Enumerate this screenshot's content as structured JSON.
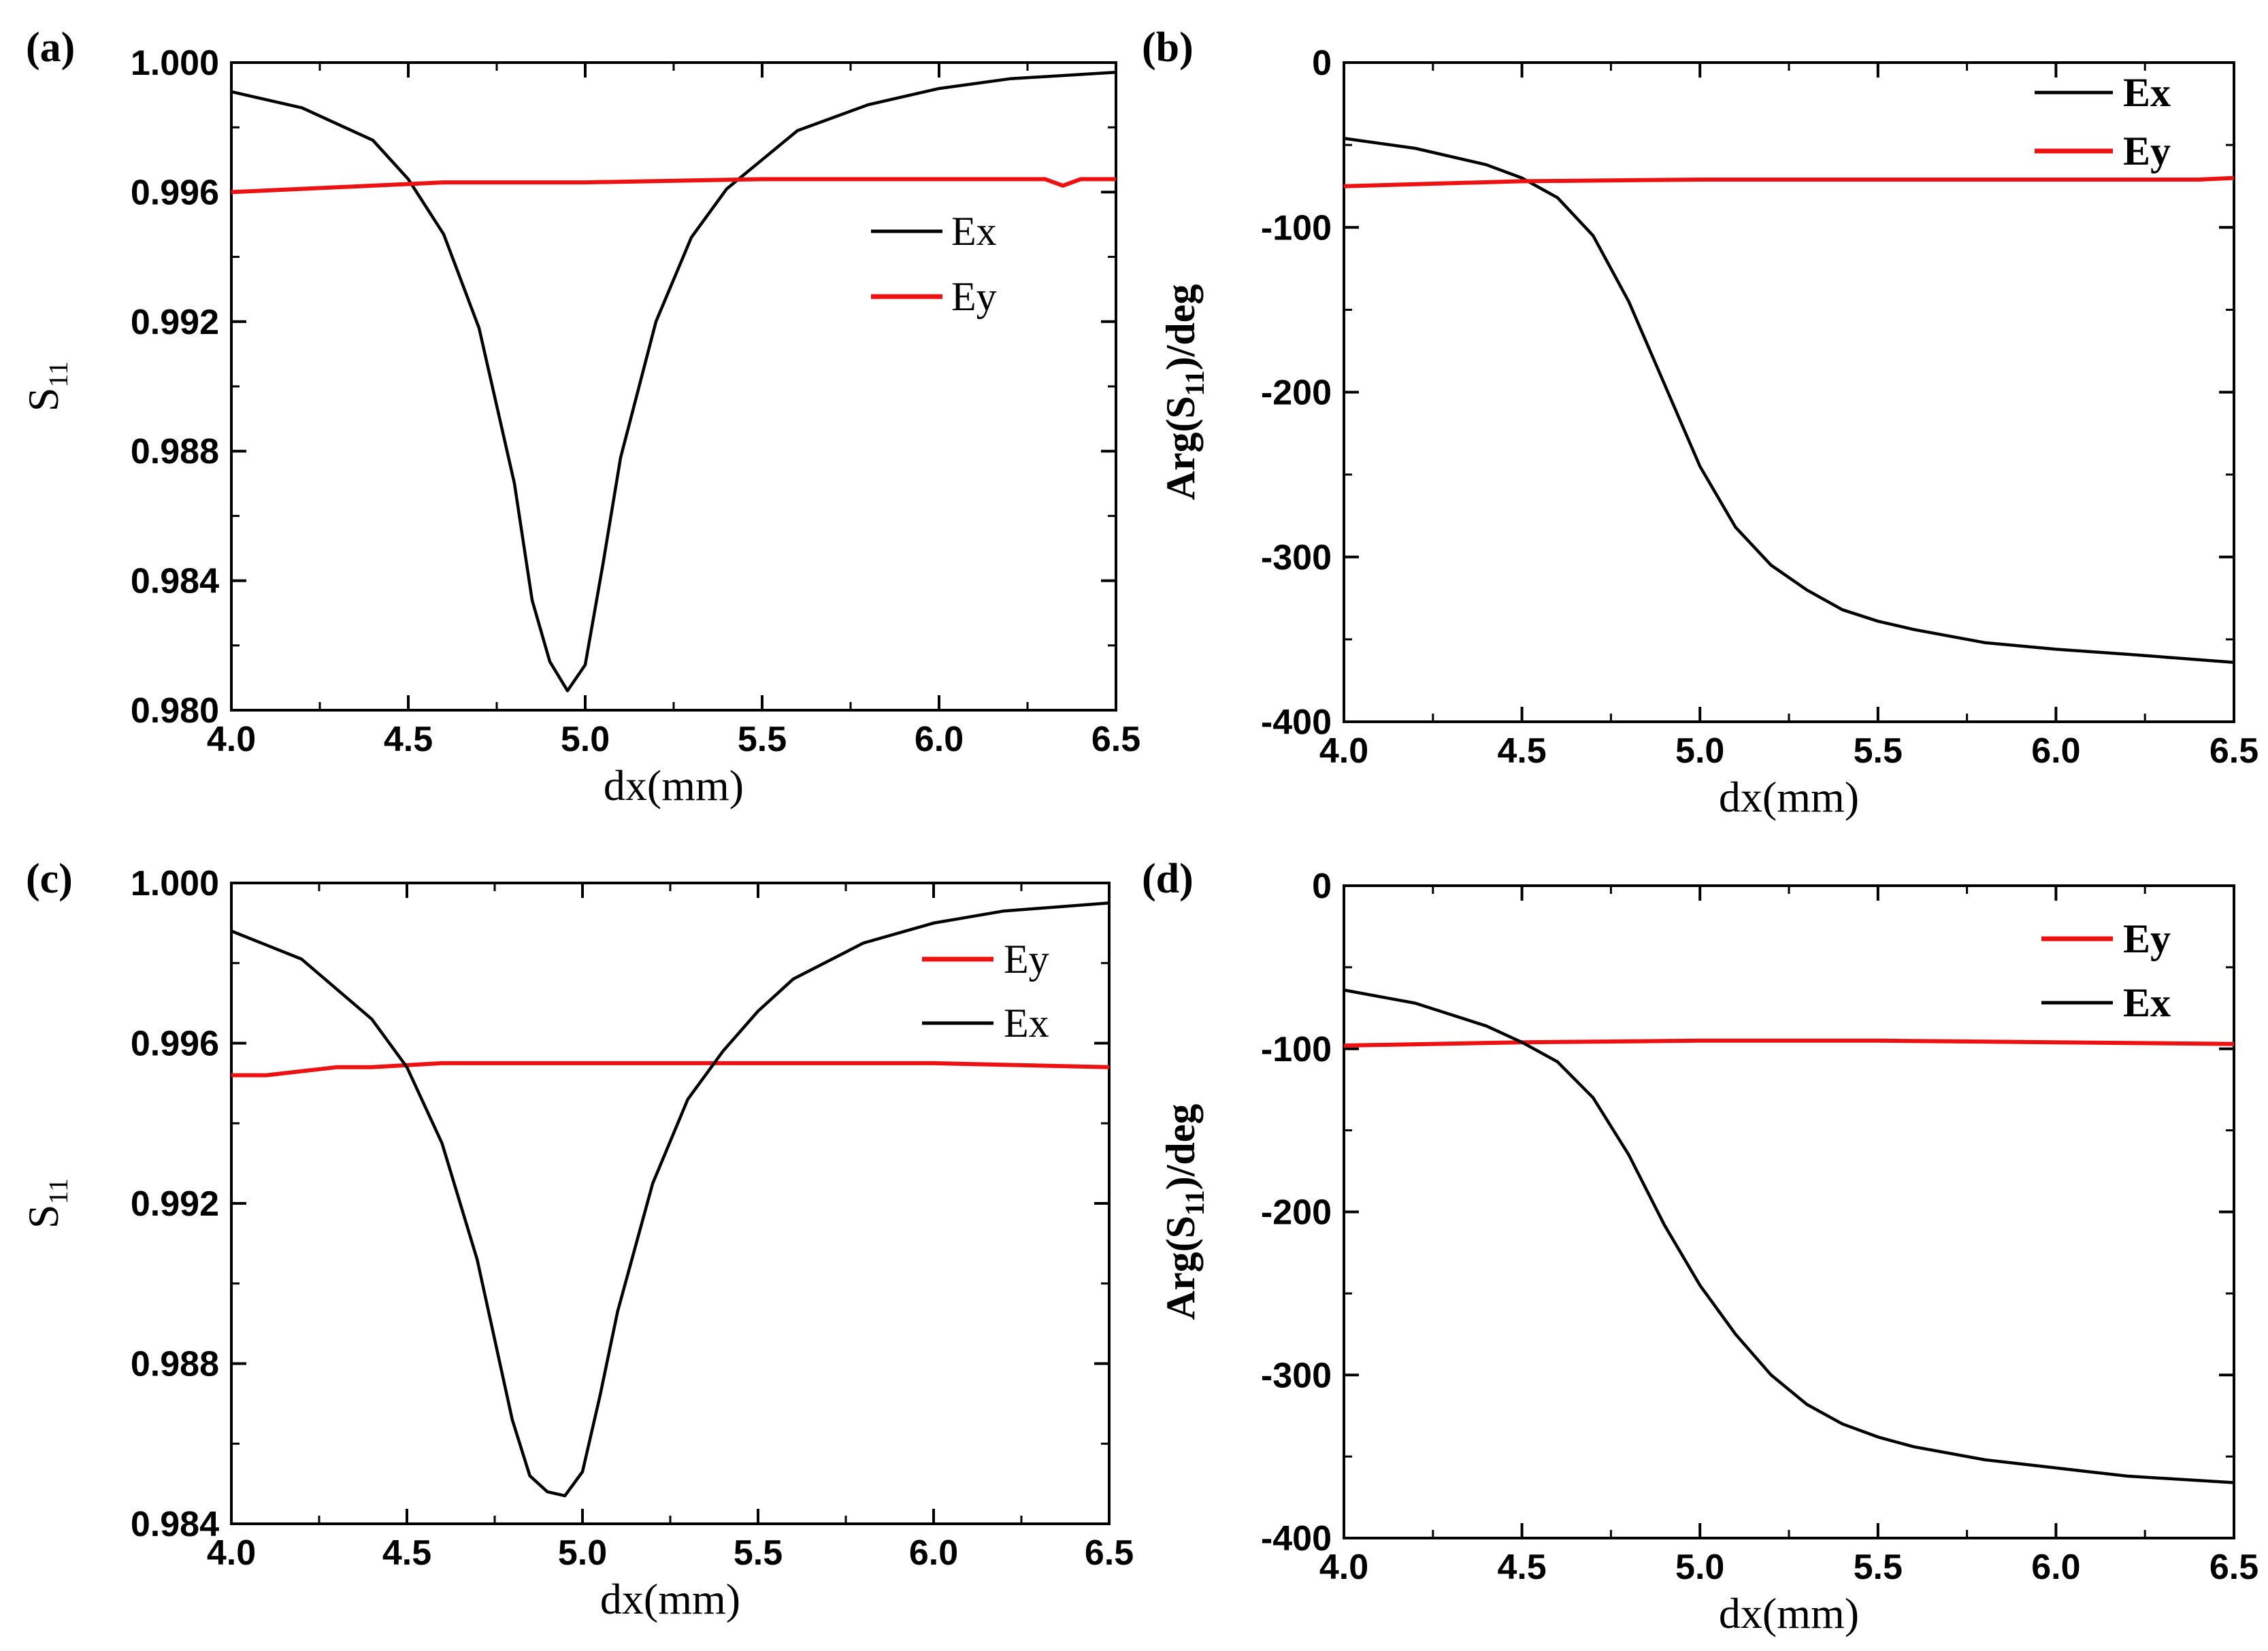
{
  "colors": {
    "ex": "#000000",
    "ey": "#ee1111",
    "axis": "#000000"
  },
  "chart_data": [
    {
      "panel": "(a)",
      "type": "line",
      "xlabel": "dx(mm)",
      "ylabel": "S",
      "ylabel_sub": "11",
      "xlim": [
        4.0,
        6.5
      ],
      "ylim": [
        0.98,
        1.0
      ],
      "xticks": [
        "4.0",
        "4.5",
        "5.0",
        "5.5",
        "6.0",
        "6.5"
      ],
      "yticks": [
        "0.980",
        "0.984",
        "0.988",
        "0.992",
        "0.996",
        "1.000"
      ],
      "legend": [
        "Ex",
        "Ey"
      ],
      "legend_position": "right, below top",
      "series": [
        {
          "name": "Ex",
          "color": "#000000",
          "x": [
            4.0,
            4.2,
            4.4,
            4.5,
            4.6,
            4.7,
            4.8,
            4.85,
            4.9,
            4.95,
            5.0,
            5.05,
            5.1,
            5.2,
            5.3,
            5.4,
            5.5,
            5.6,
            5.8,
            6.0,
            6.2,
            6.5
          ],
          "y": [
            0.9991,
            0.9986,
            0.9976,
            0.9964,
            0.9947,
            0.9918,
            0.987,
            0.9834,
            0.9815,
            0.9806,
            0.9814,
            0.9845,
            0.9878,
            0.992,
            0.9946,
            0.9961,
            0.997,
            0.9979,
            0.9987,
            0.9992,
            0.9995,
            0.9997
          ]
        },
        {
          "name": "Ey",
          "color": "#ee1111",
          "x": [
            4.0,
            4.2,
            4.4,
            4.6,
            4.8,
            5.0,
            5.5,
            6.0,
            6.3,
            6.35,
            6.4,
            6.5
          ],
          "y": [
            0.996,
            0.9961,
            0.9962,
            0.9963,
            0.9963,
            0.9963,
            0.9964,
            0.9964,
            0.9964,
            0.9962,
            0.9964,
            0.9964
          ]
        }
      ]
    },
    {
      "panel": "(b)",
      "type": "line",
      "xlabel": "dx(mm)",
      "ylabel": "Arg(S",
      "ylabel_sub": "11",
      "ylabel_end": ")/deg",
      "xlim": [
        4.0,
        6.5
      ],
      "ylim": [
        -400,
        0
      ],
      "xticks": [
        "4.0",
        "4.5",
        "5.0",
        "5.5",
        "6.0",
        "6.5"
      ],
      "yticks": [
        "-400",
        "-300",
        "-200",
        "-100",
        "0"
      ],
      "legend": [
        "Ex",
        "Ey"
      ],
      "legend_position": "top-right",
      "series": [
        {
          "name": "Ex",
          "color": "#000000",
          "x": [
            4.0,
            4.2,
            4.4,
            4.5,
            4.6,
            4.7,
            4.8,
            4.9,
            5.0,
            5.1,
            5.2,
            5.3,
            5.4,
            5.5,
            5.6,
            5.8,
            6.0,
            6.2,
            6.5
          ],
          "y": [
            -46,
            -52,
            -62,
            -70,
            -82,
            -105,
            -145,
            -195,
            -245,
            -282,
            -305,
            -320,
            -332,
            -339,
            -344,
            -352,
            -356,
            -359,
            -364
          ]
        },
        {
          "name": "Ey",
          "color": "#ee1111",
          "x": [
            4.0,
            4.5,
            5.0,
            5.5,
            6.0,
            6.4,
            6.5
          ],
          "y": [
            -75,
            -72,
            -71,
            -71,
            -71,
            -71,
            -70
          ]
        }
      ]
    },
    {
      "panel": "(c)",
      "type": "line",
      "xlabel": "dx(mm)",
      "ylabel": "S",
      "ylabel_sub": "11",
      "xlim": [
        4.0,
        6.5
      ],
      "ylim": [
        0.984,
        1.0
      ],
      "xticks": [
        "4.0",
        "4.5",
        "5.0",
        "5.5",
        "6.0",
        "6.5"
      ],
      "yticks": [
        "0.984",
        "0.988",
        "0.992",
        "0.996",
        "1.000"
      ],
      "legend": [
        "Ey",
        "Ex"
      ],
      "legend_position": "top-right",
      "series": [
        {
          "name": "Ey",
          "color": "#ee1111",
          "x": [
            4.0,
            4.1,
            4.2,
            4.3,
            4.4,
            4.6,
            5.0,
            5.5,
            6.0,
            6.5
          ],
          "y": [
            0.9952,
            0.9952,
            0.9953,
            0.9954,
            0.9954,
            0.9955,
            0.9955,
            0.9955,
            0.9955,
            0.9954
          ]
        },
        {
          "name": "Ex",
          "color": "#000000",
          "x": [
            4.0,
            4.2,
            4.4,
            4.5,
            4.6,
            4.7,
            4.8,
            4.85,
            4.9,
            4.95,
            5.0,
            5.05,
            5.1,
            5.2,
            5.3,
            5.4,
            5.5,
            5.6,
            5.8,
            6.0,
            6.2,
            6.5
          ],
          "y": [
            0.9988,
            0.9981,
            0.9966,
            0.9954,
            0.9935,
            0.9906,
            0.9866,
            0.9852,
            0.9848,
            0.9847,
            0.9853,
            0.9872,
            0.9893,
            0.9925,
            0.9946,
            0.9958,
            0.9968,
            0.9976,
            0.9985,
            0.999,
            0.9993,
            0.9995
          ]
        }
      ]
    },
    {
      "panel": "(d)",
      "type": "line",
      "xlabel": "dx(mm)",
      "ylabel": "Arg(S",
      "ylabel_sub": "11",
      "ylabel_end": ")/deg",
      "xlim": [
        4.0,
        6.5
      ],
      "ylim": [
        -400,
        0
      ],
      "xticks": [
        "4.0",
        "4.5",
        "5.0",
        "5.5",
        "6.0",
        "6.5"
      ],
      "yticks": [
        "-400",
        "-300",
        "-200",
        "-100",
        "0"
      ],
      "legend": [
        "Ey",
        "Ex"
      ],
      "legend_position": "top-right",
      "series": [
        {
          "name": "Ey",
          "color": "#ee1111",
          "x": [
            4.0,
            4.5,
            5.0,
            5.5,
            6.0,
            6.5
          ],
          "y": [
            -98,
            -96,
            -95,
            -95,
            -96,
            -97
          ]
        },
        {
          "name": "Ex",
          "color": "#000000",
          "x": [
            4.0,
            4.2,
            4.4,
            4.5,
            4.6,
            4.7,
            4.8,
            4.9,
            5.0,
            5.1,
            5.2,
            5.3,
            5.4,
            5.5,
            5.6,
            5.8,
            6.0,
            6.2,
            6.5
          ],
          "y": [
            -64,
            -72,
            -86,
            -96,
            -108,
            -130,
            -165,
            -208,
            -245,
            -275,
            -300,
            -318,
            -330,
            -338,
            -344,
            -352,
            -357,
            -362,
            -366
          ]
        }
      ]
    }
  ]
}
